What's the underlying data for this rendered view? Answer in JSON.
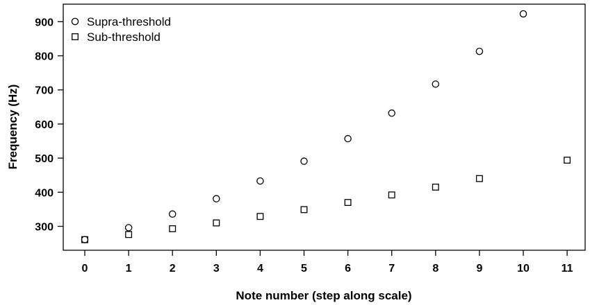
{
  "chart_data": {
    "type": "scatter",
    "xlabel": "Note number (step along scale)",
    "ylabel": "Frequency (Hz)",
    "xlim": [
      0,
      11
    ],
    "ylim": [
      261,
      924
    ],
    "x_ticks": [
      0,
      1,
      2,
      3,
      4,
      5,
      6,
      7,
      8,
      9,
      10,
      11
    ],
    "y_ticks": [
      300,
      400,
      500,
      600,
      700,
      800,
      900
    ],
    "grid": false,
    "legend_position": "top-left",
    "series": [
      {
        "name": "Supra-threshold",
        "marker": "circle",
        "x": [
          0,
          1,
          2,
          3,
          4,
          5,
          6,
          7,
          8,
          9,
          10
        ],
        "y": [
          261,
          296,
          336,
          381,
          433,
          491,
          557,
          632,
          717,
          813,
          923
        ]
      },
      {
        "name": "Sub-threshold",
        "marker": "square",
        "x": [
          0,
          1,
          2,
          3,
          4,
          5,
          6,
          7,
          8,
          9,
          11
        ],
        "y": [
          261,
          276,
          293,
          310,
          329,
          349,
          370,
          392,
          415,
          440,
          494
        ]
      }
    ]
  }
}
